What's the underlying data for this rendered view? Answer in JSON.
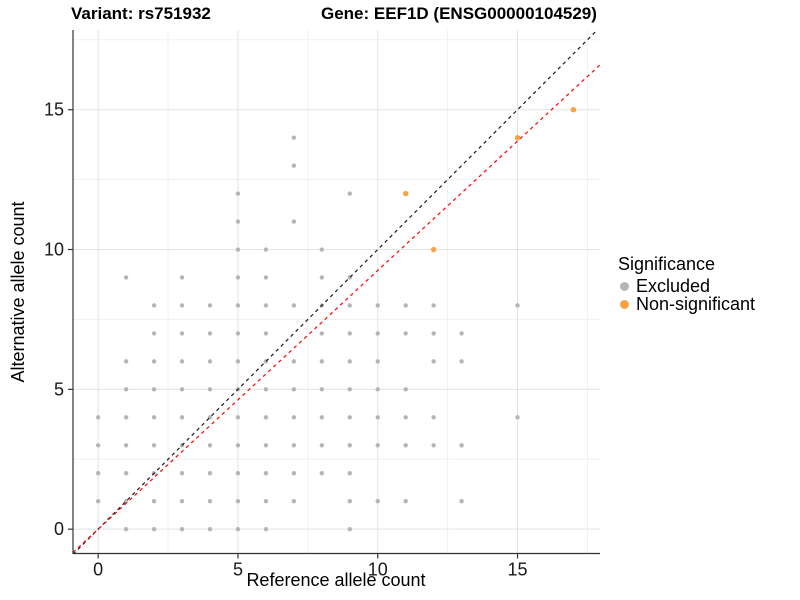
{
  "header": {
    "variant_title": "Variant: rs751932",
    "gene_title": "Gene: EEF1D (ENSG00000104529)"
  },
  "chart_data": {
    "type": "scatter",
    "title": "Variant: rs751932 / Gene: EEF1D (ENSG00000104529)",
    "xlabel": "Reference allele count",
    "ylabel": "Alternative allele count",
    "xlim": [
      -0.9,
      17.95
    ],
    "ylim": [
      -0.87,
      17.85
    ],
    "xticks": [
      0,
      5,
      10,
      15
    ],
    "yticks": [
      0,
      5,
      10,
      15
    ],
    "xticks_minor": [
      2.5,
      7.5,
      12.5,
      17.5
    ],
    "yticks_minor": [
      2.5,
      7.5,
      12.5,
      17.5
    ],
    "grid": "on",
    "legend_position": "right",
    "colors": {
      "major_grid": "#e3e3e3",
      "minor_grid": "#f0f0f0",
      "axis_line": "#333333",
      "tick_mark": "#333333"
    },
    "series": [
      {
        "name": "Excluded",
        "color": "#b5b5b5",
        "radius": 2.2,
        "points": [
          [
            1,
            0
          ],
          [
            2,
            0
          ],
          [
            3,
            0
          ],
          [
            4,
            0
          ],
          [
            5,
            0
          ],
          [
            6,
            0
          ],
          [
            9,
            0
          ],
          [
            0,
            1
          ],
          [
            1,
            1
          ],
          [
            2,
            1
          ],
          [
            3,
            1
          ],
          [
            4,
            1
          ],
          [
            5,
            1
          ],
          [
            6,
            1
          ],
          [
            7,
            1
          ],
          [
            9,
            1
          ],
          [
            10,
            1
          ],
          [
            11,
            1
          ],
          [
            13,
            1
          ],
          [
            0,
            2
          ],
          [
            1,
            2
          ],
          [
            2,
            2
          ],
          [
            3,
            2
          ],
          [
            4,
            2
          ],
          [
            5,
            2
          ],
          [
            6,
            2
          ],
          [
            7,
            2
          ],
          [
            8,
            2
          ],
          [
            9,
            2
          ],
          [
            0,
            3
          ],
          [
            1,
            3
          ],
          [
            2,
            3
          ],
          [
            3,
            3
          ],
          [
            4,
            3
          ],
          [
            5,
            3
          ],
          [
            6,
            3
          ],
          [
            7,
            3
          ],
          [
            8,
            3
          ],
          [
            9,
            3
          ],
          [
            10,
            3
          ],
          [
            11,
            3
          ],
          [
            12,
            3
          ],
          [
            13,
            3
          ],
          [
            0,
            4
          ],
          [
            1,
            4
          ],
          [
            2,
            4
          ],
          [
            3,
            4
          ],
          [
            4,
            4
          ],
          [
            5,
            4
          ],
          [
            6,
            4
          ],
          [
            7,
            4
          ],
          [
            8,
            4
          ],
          [
            9,
            4
          ],
          [
            10,
            4
          ],
          [
            11,
            4
          ],
          [
            12,
            4
          ],
          [
            15,
            4
          ],
          [
            1,
            5
          ],
          [
            2,
            5
          ],
          [
            3,
            5
          ],
          [
            4,
            5
          ],
          [
            5,
            5
          ],
          [
            6,
            5
          ],
          [
            7,
            5
          ],
          [
            8,
            5
          ],
          [
            9,
            5
          ],
          [
            10,
            5
          ],
          [
            11,
            5
          ],
          [
            1,
            6
          ],
          [
            2,
            6
          ],
          [
            3,
            6
          ],
          [
            4,
            6
          ],
          [
            5,
            6
          ],
          [
            6,
            6
          ],
          [
            7,
            6
          ],
          [
            8,
            6
          ],
          [
            9,
            6
          ],
          [
            10,
            6
          ],
          [
            12,
            6
          ],
          [
            13,
            6
          ],
          [
            2,
            7
          ],
          [
            3,
            7
          ],
          [
            4,
            7
          ],
          [
            5,
            7
          ],
          [
            6,
            7
          ],
          [
            8,
            7
          ],
          [
            9,
            7
          ],
          [
            10,
            7
          ],
          [
            11,
            7
          ],
          [
            12,
            7
          ],
          [
            13,
            7
          ],
          [
            2,
            8
          ],
          [
            3,
            8
          ],
          [
            4,
            8
          ],
          [
            5,
            8
          ],
          [
            6,
            8
          ],
          [
            7,
            8
          ],
          [
            8,
            8
          ],
          [
            9,
            8
          ],
          [
            10,
            8
          ],
          [
            11,
            8
          ],
          [
            12,
            8
          ],
          [
            15,
            8
          ],
          [
            1,
            9
          ],
          [
            3,
            9
          ],
          [
            5,
            9
          ],
          [
            6,
            9
          ],
          [
            8,
            9
          ],
          [
            9,
            9
          ],
          [
            5,
            10
          ],
          [
            6,
            10
          ],
          [
            8,
            10
          ],
          [
            5,
            11
          ],
          [
            7,
            11
          ],
          [
            5,
            12
          ],
          [
            9,
            12
          ],
          [
            7,
            13
          ],
          [
            7,
            14
          ]
        ]
      },
      {
        "name": "Non-significant",
        "color": "#f9a242",
        "radius": 2.7,
        "points": [
          [
            11,
            12
          ],
          [
            12,
            10
          ],
          [
            15,
            14
          ],
          [
            17,
            15
          ]
        ]
      }
    ],
    "lines": [
      {
        "name": "identity-line",
        "color": "#1a1a1a",
        "slope": 1,
        "intercept": 0,
        "dash": "3.5 3.5"
      },
      {
        "name": "fit-line",
        "color": "#ff0000",
        "slope": 0.925,
        "intercept": 0,
        "dash": "3.5 3.5"
      }
    ]
  },
  "legend": {
    "title": "Significance",
    "items": [
      {
        "label": "Excluded",
        "color": "#b5b5b5"
      },
      {
        "label": "Non-significant",
        "color": "#f9a242"
      }
    ]
  }
}
